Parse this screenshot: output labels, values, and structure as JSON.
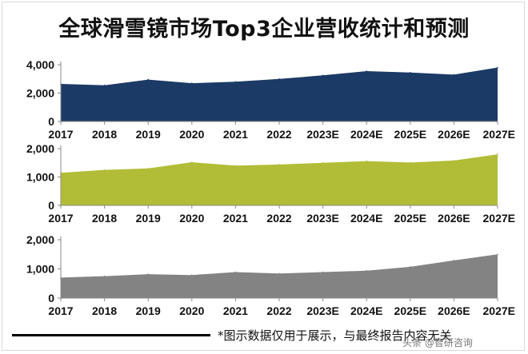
{
  "title": "全球滑雪镜市场Top3企业营收统计和预测",
  "footnote": "*图示数据仅用于展示，与最终报告内容无关",
  "brand": "头条 @智研咨询",
  "chart_data": [
    {
      "type": "area",
      "categories": [
        "2017",
        "2018",
        "2019",
        "2020",
        "2021",
        "2022",
        "2023E",
        "2024E",
        "2025E",
        "2026E",
        "2027E"
      ],
      "values": [
        2650,
        2550,
        2950,
        2700,
        2800,
        3000,
        3250,
        3550,
        3450,
        3300,
        3800
      ],
      "ylim": [
        0,
        4000
      ],
      "yticks": [
        0,
        2000,
        4000
      ],
      "ytick_labels": [
        "0",
        "2,000",
        "4,000"
      ],
      "color": "#1c3a66"
    },
    {
      "type": "area",
      "categories": [
        "2017",
        "2018",
        "2019",
        "2020",
        "2021",
        "2022",
        "2023E",
        "2024E",
        "2025E",
        "2026E",
        "2027E"
      ],
      "values": [
        1150,
        1250,
        1300,
        1520,
        1400,
        1440,
        1500,
        1560,
        1510,
        1580,
        1800
      ],
      "ylim": [
        0,
        2000
      ],
      "yticks": [
        0,
        1000,
        2000
      ],
      "ytick_labels": [
        "0",
        "1,000",
        "2,000"
      ],
      "color": "#b1bd36"
    },
    {
      "type": "area",
      "categories": [
        "2017",
        "2018",
        "2019",
        "2020",
        "2021",
        "2022",
        "2023E",
        "2024E",
        "2025E",
        "2026E",
        "2027E"
      ],
      "values": [
        700,
        750,
        820,
        790,
        890,
        840,
        890,
        940,
        1070,
        1290,
        1500
      ],
      "ylim": [
        0,
        2000
      ],
      "yticks": [
        0,
        1000,
        2000
      ],
      "ytick_labels": [
        "0",
        "1,000",
        "2,000"
      ],
      "color": "#838383"
    }
  ]
}
